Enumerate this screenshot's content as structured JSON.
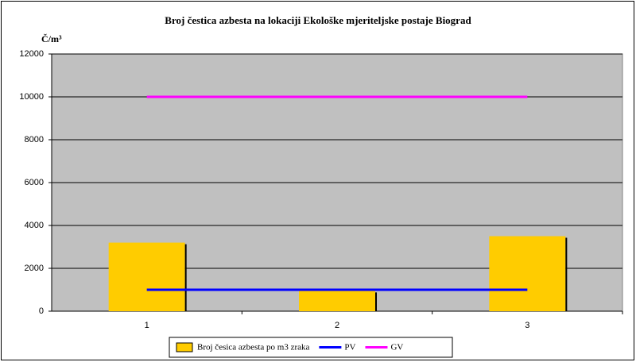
{
  "chart_data": {
    "type": "combo",
    "title": "Broj čestica azbesta na lokaciji Ekološke mjeriteljske postaje Biograd",
    "y_label": "Č/m³",
    "categories": [
      "1",
      "2",
      "3"
    ],
    "series": [
      {
        "name": "Broj česica azbesta po m3 zraka",
        "type": "bar",
        "color": "#ffcc00",
        "values": [
          3200,
          950,
          3500
        ]
      },
      {
        "name": "PV",
        "type": "line",
        "color": "#0000ff",
        "values": [
          1000,
          1000,
          1000
        ]
      },
      {
        "name": "GV",
        "type": "line",
        "color": "#ff00ff",
        "values": [
          10000,
          10000,
          10000
        ]
      }
    ],
    "ylim": [
      0,
      12000
    ],
    "yticks": [
      0,
      2000,
      4000,
      6000,
      8000,
      10000,
      12000
    ],
    "grid": true,
    "legend": "bottom"
  }
}
